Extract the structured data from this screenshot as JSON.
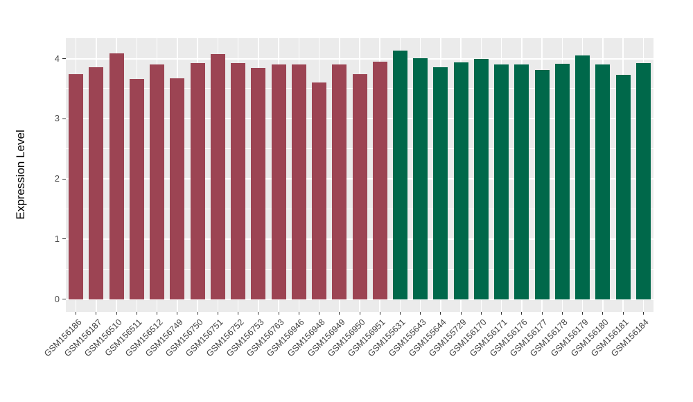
{
  "chart_data": {
    "type": "bar",
    "title": "",
    "xlabel": "",
    "ylabel": "Expression Level",
    "categories": [
      "GSM156186",
      "GSM156187",
      "GSM156510",
      "GSM156511",
      "GSM156512",
      "GSM156749",
      "GSM156750",
      "GSM156751",
      "GSM156752",
      "GSM156753",
      "GSM156763",
      "GSM156946",
      "GSM156948",
      "GSM156949",
      "GSM156950",
      "GSM156951",
      "GSM155631",
      "GSM155643",
      "GSM155644",
      "GSM155729",
      "GSM156170",
      "GSM156171",
      "GSM156176",
      "GSM156177",
      "GSM156178",
      "GSM156179",
      "GSM156180",
      "GSM156181",
      "GSM156184"
    ],
    "values": [
      3.74,
      3.86,
      4.09,
      3.66,
      3.9,
      3.67,
      3.93,
      4.08,
      3.93,
      3.85,
      3.9,
      3.9,
      3.6,
      3.9,
      3.74,
      3.95,
      4.13,
      4.01,
      3.86,
      3.94,
      3.99,
      3.9,
      3.9,
      3.81,
      3.91,
      4.05,
      3.9,
      3.73,
      3.92
    ],
    "groups": [
      "group1",
      "group1",
      "group1",
      "group1",
      "group1",
      "group1",
      "group1",
      "group1",
      "group1",
      "group1",
      "group1",
      "group1",
      "group1",
      "group1",
      "group1",
      "group1",
      "group2",
      "group2",
      "group2",
      "group2",
      "group2",
      "group2",
      "group2",
      "group2",
      "group2",
      "group2",
      "group2",
      "group2",
      "group2"
    ],
    "group_colors": {
      "group1": "#9C4453",
      "group2": "#00684A"
    },
    "ylim": [
      -0.21,
      4.34
    ],
    "yticks": [
      0,
      1,
      2,
      3,
      4
    ],
    "yticks_minor": [
      0.5,
      1.5,
      2.5,
      3.5
    ],
    "ytick_labels": [
      "0",
      "1",
      "2",
      "3",
      "4"
    ],
    "grid": "on",
    "legend": "none",
    "panel_background": "#EBEBEB",
    "gridline_color": "#FFFFFF",
    "axis_text_color": "#4D4D4D",
    "x_axis_text_color": "#404040",
    "tick_mark_color": "#333333"
  }
}
